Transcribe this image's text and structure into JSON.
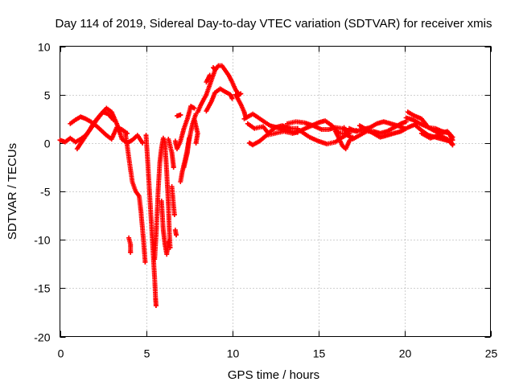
{
  "chart_data": {
    "type": "scatter",
    "title": "Day 114 of 2019, Sidereal Day-to-day VTEC variation (SDTVAR) for receiver xmis",
    "xlabel": "GPS time / hours",
    "ylabel": "SDTVAR / TECUs",
    "xlim": [
      0,
      25
    ],
    "ylim": [
      -20,
      10
    ],
    "xticks": [
      0,
      5,
      10,
      15,
      20,
      25
    ],
    "yticks": [
      -20,
      -15,
      -10,
      -5,
      0,
      5,
      10
    ],
    "grid": true,
    "marker": "+",
    "series": [
      {
        "name": "SDTVAR",
        "color": "#ff0000",
        "tracks": [
          [
            [
              0.0,
              0.3
            ],
            [
              0.3,
              0.1
            ],
            [
              0.6,
              0.5
            ],
            [
              0.9,
              0.1
            ],
            [
              1.2,
              0.4
            ],
            [
              1.5,
              0.8
            ],
            [
              1.8,
              1.5
            ],
            [
              2.1,
              2.3
            ],
            [
              2.4,
              3.0
            ],
            [
              2.7,
              3.6
            ],
            [
              3.0,
              3.2
            ],
            [
              3.3,
              2.0
            ],
            [
              3.6,
              0.4
            ],
            [
              3.9,
              0.0
            ],
            [
              4.2,
              0.3
            ],
            [
              4.5,
              0.8
            ],
            [
              4.8,
              0.0
            ]
          ],
          [
            [
              0.6,
              2.0
            ],
            [
              0.9,
              2.4
            ],
            [
              1.2,
              2.7
            ],
            [
              1.5,
              2.5
            ],
            [
              1.8,
              2.2
            ],
            [
              2.1,
              1.8
            ],
            [
              2.4,
              1.3
            ],
            [
              2.7,
              0.8
            ],
            [
              3.0,
              0.4
            ],
            [
              3.3,
              1.6
            ],
            [
              3.6,
              1.4
            ],
            [
              3.9,
              1.0
            ]
          ],
          [
            [
              1.0,
              -0.6
            ],
            [
              1.3,
              0.2
            ],
            [
              1.6,
              1.0
            ],
            [
              1.9,
              1.9
            ],
            [
              2.2,
              2.6
            ],
            [
              2.5,
              3.2
            ],
            [
              2.8,
              3.0
            ],
            [
              3.1,
              2.4
            ]
          ],
          [
            [
              3.8,
              1.0
            ],
            [
              4.0,
              -1.5
            ],
            [
              4.2,
              -4.0
            ],
            [
              4.4,
              -5.0
            ],
            [
              4.6,
              -5.5
            ],
            [
              4.7,
              -7.0
            ],
            [
              4.85,
              -10.0
            ],
            [
              4.95,
              -12.3
            ]
          ],
          [
            [
              4.0,
              -9.8
            ],
            [
              4.1,
              -10.5
            ],
            [
              4.1,
              -11.3
            ]
          ],
          [
            [
              5.0,
              0.8
            ],
            [
              5.1,
              -2.0
            ],
            [
              5.2,
              -5.0
            ],
            [
              5.3,
              -8.0
            ],
            [
              5.4,
              -11.0
            ],
            [
              5.5,
              -14.0
            ],
            [
              5.55,
              -16.0
            ],
            [
              5.58,
              -16.8
            ]
          ],
          [
            [
              5.5,
              -12.0
            ],
            [
              5.6,
              -9.0
            ],
            [
              5.7,
              -5.0
            ],
            [
              5.8,
              -2.0
            ],
            [
              5.9,
              -0.5
            ],
            [
              6.0,
              0.5
            ],
            [
              6.1,
              0.0
            ],
            [
              6.2,
              -3.0
            ],
            [
              6.3,
              -6.5
            ],
            [
              6.35,
              -9.0
            ],
            [
              6.4,
              -10.8
            ]
          ],
          [
            [
              5.9,
              -6.0
            ],
            [
              6.0,
              -9.0
            ],
            [
              6.1,
              -10.5
            ],
            [
              6.2,
              -11.5
            ],
            [
              6.3,
              -10.2
            ]
          ],
          [
            [
              6.3,
              0.4
            ],
            [
              6.5,
              -1.0
            ],
            [
              6.6,
              -2.5
            ]
          ],
          [
            [
              6.5,
              -4.5
            ],
            [
              6.6,
              -6.5
            ],
            [
              6.65,
              -7.4
            ]
          ],
          [
            [
              6.7,
              -9.0
            ],
            [
              6.75,
              -9.5
            ]
          ],
          [
            [
              6.7,
              0.2
            ],
            [
              6.8,
              -0.6
            ],
            [
              7.0,
              0.2
            ],
            [
              7.2,
              1.5
            ],
            [
              7.4,
              2.5
            ],
            [
              7.6,
              3.8
            ],
            [
              7.8,
              3.6
            ]
          ],
          [
            [
              6.8,
              2.8
            ],
            [
              7.0,
              2.9
            ]
          ],
          [
            [
              7.0,
              -4.0
            ],
            [
              7.1,
              -3.0
            ],
            [
              7.3,
              -1.5
            ],
            [
              7.5,
              0.3
            ],
            [
              7.7,
              2.0
            ],
            [
              7.9,
              3.0
            ]
          ],
          [
            [
              7.2,
              -2.5
            ],
            [
              7.4,
              -1.0
            ],
            [
              7.5,
              0.5
            ]
          ],
          [
            [
              7.8,
              2.5
            ],
            [
              8.0,
              1.0
            ],
            [
              7.9,
              0.0
            ]
          ],
          [
            [
              8.0,
              3.2
            ],
            [
              8.2,
              4.0
            ],
            [
              8.5,
              5.0
            ],
            [
              8.8,
              6.5
            ],
            [
              9.0,
              7.5
            ],
            [
              9.2,
              8.0
            ],
            [
              9.4,
              8.0
            ],
            [
              9.6,
              7.5
            ],
            [
              9.8,
              7.0
            ],
            [
              10.0,
              6.3
            ],
            [
              10.2,
              5.5
            ],
            [
              10.4,
              5.0
            ],
            [
              10.5,
              5.1
            ]
          ],
          [
            [
              8.5,
              3.3
            ],
            [
              8.8,
              4.3
            ],
            [
              9.0,
              5.2
            ],
            [
              9.3,
              5.6
            ],
            [
              9.6,
              5.3
            ],
            [
              9.9,
              5.0
            ],
            [
              10.0,
              4.6
            ]
          ],
          [
            [
              8.5,
              6.3
            ],
            [
              8.7,
              7.0
            ]
          ],
          [
            [
              8.9,
              7.8
            ],
            [
              9.0,
              7.6
            ]
          ],
          [
            [
              10.2,
              5.0
            ],
            [
              10.5,
              4.0
            ],
            [
              10.7,
              3.2
            ],
            [
              10.8,
              2.6
            ]
          ],
          [
            [
              10.7,
              2.5
            ],
            [
              11.2,
              3.0
            ],
            [
              11.7,
              2.4
            ],
            [
              12.2,
              1.8
            ],
            [
              12.6,
              1.6
            ],
            [
              13.0,
              1.4
            ],
            [
              13.4,
              1.2
            ]
          ],
          [
            [
              10.9,
              2.0
            ],
            [
              11.3,
              1.5
            ],
            [
              11.8,
              1.7
            ],
            [
              12.1,
              1.0
            ],
            [
              12.5,
              1.6
            ],
            [
              12.9,
              1.8
            ],
            [
              13.4,
              1.5
            ],
            [
              13.8,
              1.5
            ]
          ],
          [
            [
              11.0,
              0.0
            ],
            [
              11.2,
              -0.2
            ],
            [
              11.6,
              0.2
            ],
            [
              12.0,
              0.8
            ],
            [
              12.5,
              1.0
            ],
            [
              13.0,
              1.2
            ],
            [
              13.5,
              1.0
            ],
            [
              13.8,
              1.1
            ]
          ],
          [
            [
              13.2,
              2.0
            ],
            [
              13.7,
              2.2
            ],
            [
              14.2,
              2.1
            ],
            [
              14.7,
              1.8
            ],
            [
              15.2,
              1.4
            ],
            [
              15.6,
              1.4
            ],
            [
              16.0,
              1.6
            ],
            [
              16.4,
              1.5
            ],
            [
              16.8,
              1.2
            ],
            [
              17.2,
              1.3
            ]
          ],
          [
            [
              13.5,
              1.0
            ],
            [
              14.0,
              1.3
            ],
            [
              14.5,
              1.7
            ],
            [
              15.0,
              2.1
            ],
            [
              15.4,
              2.3
            ],
            [
              15.8,
              1.8
            ],
            [
              16.2,
              1.0
            ],
            [
              16.6,
              1.0
            ]
          ],
          [
            [
              14.0,
              1.2
            ],
            [
              14.5,
              0.6
            ],
            [
              15.0,
              0.2
            ],
            [
              15.5,
              -0.1
            ],
            [
              16.0,
              0.1
            ],
            [
              16.4,
              0.6
            ],
            [
              16.8,
              1.0
            ]
          ],
          [
            [
              16.0,
              1.2
            ],
            [
              16.2,
              0.5
            ],
            [
              16.4,
              -0.3
            ],
            [
              16.6,
              -0.6
            ],
            [
              16.8,
              0.2
            ],
            [
              17.0,
              0.6
            ]
          ],
          [
            [
              16.5,
              1.6
            ],
            [
              16.7,
              0.8
            ],
            [
              16.9,
              0.6
            ]
          ],
          [
            [
              16.8,
              1.5
            ],
            [
              17.2,
              1.2
            ],
            [
              17.6,
              1.4
            ],
            [
              18.0,
              1.6
            ],
            [
              18.4,
              2.0
            ],
            [
              18.8,
              2.2
            ],
            [
              19.2,
              2.0
            ],
            [
              19.6,
              1.8
            ],
            [
              20.0,
              1.5
            ]
          ],
          [
            [
              17.0,
              0.4
            ],
            [
              17.4,
              0.8
            ],
            [
              17.8,
              1.2
            ],
            [
              18.2,
              1.2
            ],
            [
              18.6,
              1.0
            ],
            [
              19.0,
              1.2
            ],
            [
              19.4,
              1.6
            ],
            [
              19.8,
              2.0
            ],
            [
              20.1,
              2.2
            ]
          ],
          [
            [
              17.4,
              1.8
            ],
            [
              17.8,
              1.4
            ],
            [
              18.2,
              1.0
            ],
            [
              18.6,
              0.6
            ],
            [
              19.0,
              0.8
            ],
            [
              19.4,
              1.0
            ],
            [
              19.8,
              1.2
            ],
            [
              20.1,
              1.5
            ]
          ],
          [
            [
              20.1,
              2.6
            ],
            [
              20.5,
              2.4
            ],
            [
              20.9,
              2.0
            ],
            [
              21.3,
              1.7
            ],
            [
              21.7,
              1.3
            ],
            [
              22.1,
              1.0
            ],
            [
              22.5,
              1.2
            ],
            [
              22.8,
              0.6
            ]
          ],
          [
            [
              20.2,
              3.2
            ],
            [
              20.6,
              2.8
            ],
            [
              21.0,
              2.5
            ],
            [
              21.4,
              1.6
            ],
            [
              21.8,
              1.5
            ],
            [
              22.2,
              1.2
            ],
            [
              22.6,
              1.0
            ],
            [
              22.8,
              0.3
            ]
          ],
          [
            [
              20.2,
              1.6
            ],
            [
              20.6,
              1.9
            ],
            [
              21.0,
              1.3
            ],
            [
              21.4,
              0.8
            ],
            [
              21.8,
              0.6
            ],
            [
              22.2,
              0.4
            ],
            [
              22.6,
              0.2
            ],
            [
              22.8,
              -0.2
            ]
          ],
          [
            [
              21.0,
              1.0
            ],
            [
              21.5,
              0.5
            ],
            [
              22.0,
              0.8
            ],
            [
              22.5,
              0.4
            ],
            [
              22.8,
              -0.1
            ]
          ]
        ]
      }
    ]
  }
}
